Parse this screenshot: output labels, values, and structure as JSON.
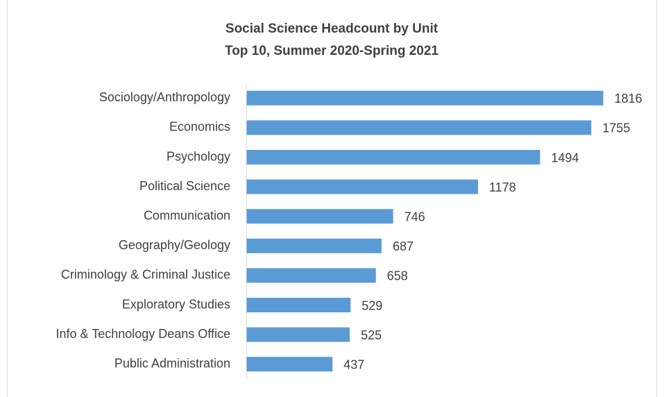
{
  "chart_data": {
    "type": "barh",
    "title": "Social Science Headcount by Unit",
    "subtitle": "Top 10, Summer 2020-Spring 2021",
    "categories": [
      "Sociology/Anthropology",
      "Economics",
      "Psychology",
      "Political Science",
      "Communication",
      "Geography/Geology",
      "Criminology & Criminal Justice",
      "Exploratory Studies",
      "Info & Technology Deans Office",
      "Public Administration"
    ],
    "values": [
      1816,
      1755,
      1494,
      1178,
      746,
      687,
      658,
      529,
      525,
      437
    ],
    "color": "#5b9bd5"
  }
}
